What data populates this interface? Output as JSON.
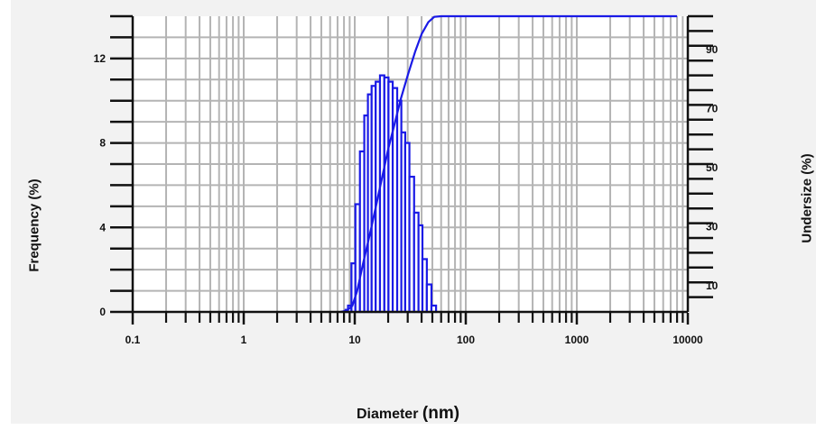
{
  "chart_data": {
    "type": "bar",
    "xlabel": "Diameter",
    "xlabel_unit": "(nm)",
    "ylabel_left": "Frequency (%)",
    "ylabel_right": "Undersize (%)",
    "x_scale": "log",
    "xlim": [
      0.1,
      10000
    ],
    "ylim_left": [
      0,
      14
    ],
    "ylim_right": [
      0,
      100
    ],
    "grid": true,
    "x_ticks": [
      "0.1",
      "1",
      "10",
      "100",
      "1000",
      "10000"
    ],
    "y_ticks_left": [
      "0",
      "4",
      "8",
      "12"
    ],
    "y_ticks_right": [
      "10",
      "30",
      "50",
      "70",
      "90"
    ],
    "series": [
      {
        "type": "bar",
        "axis": "left",
        "bins": [
          {
            "x": 8.4,
            "y": 0.1
          },
          {
            "x": 9.0,
            "y": 0.3
          },
          {
            "x": 9.7,
            "y": 2.3
          },
          {
            "x": 10.6,
            "y": 5.1
          },
          {
            "x": 11.7,
            "y": 7.6
          },
          {
            "x": 12.7,
            "y": 9.3
          },
          {
            "x": 13.6,
            "y": 10.3
          },
          {
            "x": 14.8,
            "y": 10.7
          },
          {
            "x": 16.1,
            "y": 10.9
          },
          {
            "x": 17.7,
            "y": 11.2
          },
          {
            "x": 19.3,
            "y": 11.1
          },
          {
            "x": 21.0,
            "y": 10.9
          },
          {
            "x": 23.0,
            "y": 10.6
          },
          {
            "x": 25.3,
            "y": 10.0
          },
          {
            "x": 27.3,
            "y": 8.5
          },
          {
            "x": 29.7,
            "y": 8.0
          },
          {
            "x": 32.5,
            "y": 6.4
          },
          {
            "x": 36.1,
            "y": 4.7
          },
          {
            "x": 39.0,
            "y": 4.1
          },
          {
            "x": 42.5,
            "y": 2.5
          },
          {
            "x": 46.8,
            "y": 1.3
          },
          {
            "x": 51.5,
            "y": 0.3
          }
        ]
      },
      {
        "type": "line",
        "axis": "right",
        "points": [
          {
            "x": 0.3,
            "y": 0
          },
          {
            "x": 7.5,
            "y": 0
          },
          {
            "x": 8.5,
            "y": 0.5
          },
          {
            "x": 9.5,
            "y": 2
          },
          {
            "x": 10.5,
            "y": 7
          },
          {
            "x": 12,
            "y": 17
          },
          {
            "x": 14,
            "y": 28
          },
          {
            "x": 16,
            "y": 38
          },
          {
            "x": 18,
            "y": 47
          },
          {
            "x": 20,
            "y": 55
          },
          {
            "x": 23,
            "y": 64
          },
          {
            "x": 26,
            "y": 72
          },
          {
            "x": 30,
            "y": 80
          },
          {
            "x": 35,
            "y": 88
          },
          {
            "x": 40,
            "y": 94
          },
          {
            "x": 46,
            "y": 98
          },
          {
            "x": 52,
            "y": 99.8
          },
          {
            "x": 60,
            "y": 100
          },
          {
            "x": 8000,
            "y": 100
          }
        ]
      }
    ],
    "colors": {
      "series": "#1a1ae6",
      "grid": "#b4b4b4",
      "axis": "#111111"
    }
  }
}
